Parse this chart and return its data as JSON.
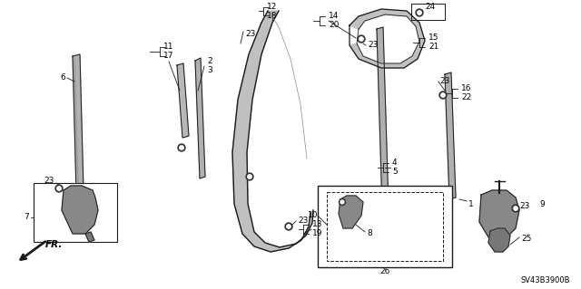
{
  "bg_color": "#ffffff",
  "line_color": "#1a1a1a",
  "diagram_id": "SV43B3900B",
  "fig_w": 6.4,
  "fig_h": 3.19,
  "dpi": 100
}
